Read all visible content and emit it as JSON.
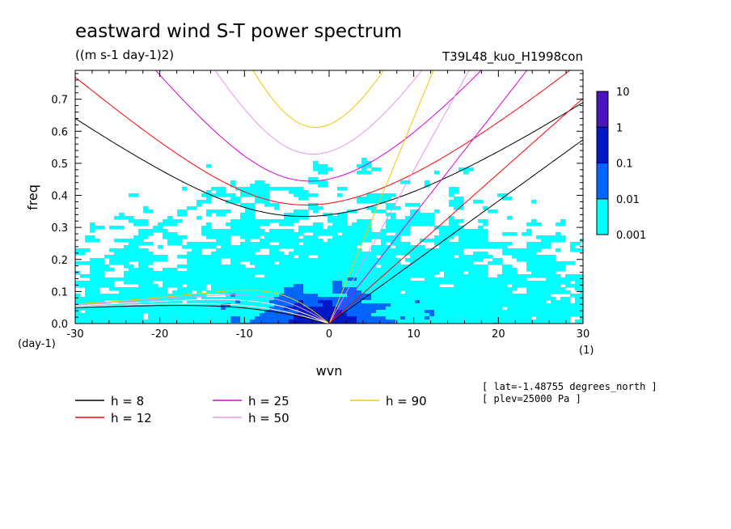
{
  "chart_data": {
    "type": "heatmap",
    "title": "eastward wind S-T power spectrum",
    "subtitle": "((m s-1 day-1)2)",
    "run_label": "T39L48_kuo_H1998con",
    "xlabel": "wvn",
    "ylabel": "freq",
    "x_unit_label": "(1)",
    "y_unit_label": "(day-1)",
    "xlim": [
      -30,
      30
    ],
    "ylim": [
      0,
      0.79
    ],
    "x_ticks": [
      -30,
      -20,
      -10,
      0,
      10,
      20,
      30
    ],
    "x_tick_labels": [
      "-30",
      "-20",
      "-10",
      "0",
      "10",
      "20",
      "30"
    ],
    "y_ticks": [
      0,
      0.1,
      0.2,
      0.3,
      0.4,
      0.5,
      0.6,
      0.7
    ],
    "y_tick_labels": [
      "0.0",
      "0.1",
      "0.2",
      "0.3",
      "0.4",
      "0.5",
      "0.6",
      "0.7"
    ],
    "colorbar": {
      "levels": [
        "0.001",
        "0.01",
        "0.1",
        "1",
        "10"
      ],
      "colors": [
        "#00ffff",
        "#0066ff",
        "#0019c8",
        "#4b14c0"
      ]
    },
    "grid": false,
    "legend_placement": "bottom-left",
    "series": [
      {
        "name": "h =  8",
        "h": 8,
        "color": "#000000"
      },
      {
        "name": "h = 12",
        "h": 12,
        "color": "#ff0000"
      },
      {
        "name": "h = 25",
        "h": 25,
        "color": "#dd00dd"
      },
      {
        "name": "h = 50",
        "h": 50,
        "color": "#e696e6"
      },
      {
        "name": "h = 90",
        "h": 90,
        "color": "#f0c800"
      }
    ],
    "annotations": [
      "[ lat=-1.48755 degrees_north ]",
      "[ plev=25000 Pa ]"
    ]
  }
}
